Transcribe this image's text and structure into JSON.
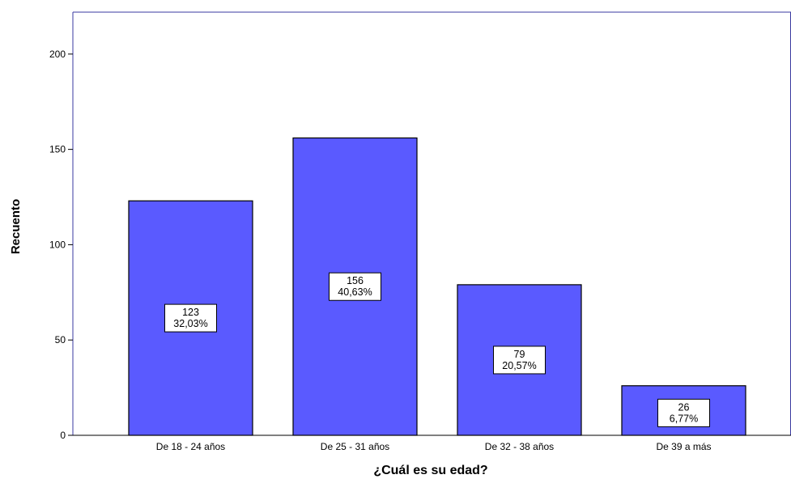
{
  "chart_data": {
    "type": "bar",
    "title": "",
    "xlabel": "¿Cuál es su edad?",
    "ylabel": "Recuento",
    "categories": [
      "De 18 - 24  años",
      "De 25 - 31 años",
      "De 32 - 38 años",
      "De 39 a más"
    ],
    "values": [
      123,
      156,
      79,
      26
    ],
    "percent_labels": [
      "32,03%",
      "40,63%",
      "20,57%",
      "6,77%"
    ],
    "ylim": [
      0,
      222
    ],
    "yticks": [
      0,
      50,
      100,
      150,
      200
    ],
    "grid": false,
    "legend": "none",
    "bar_color": "#5a5aff",
    "frame_color": "#3a3aa0"
  }
}
